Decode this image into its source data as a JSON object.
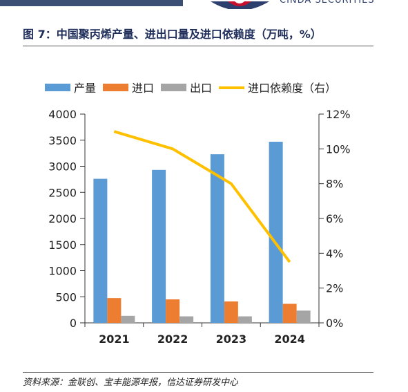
{
  "header": {
    "logo_text": "CINDA SECURITIES"
  },
  "figure": {
    "title": "图 7：中国聚丙烯产量、进出口量及进口依赖度（万吨，%）",
    "source": "资料来源：金联创、宝丰能源年报，信达证券研发中心"
  },
  "colors": {
    "production": "#5b9bd5",
    "import": "#ed7d31",
    "export": "#a5a5a5",
    "dependency": "#ffc000"
  },
  "chart_data": {
    "type": "bar",
    "categories": [
      "2021",
      "2022",
      "2023",
      "2024"
    ],
    "series": [
      {
        "name": "产量",
        "type": "bar",
        "axis": "left",
        "values": [
          2760,
          2930,
          3230,
          3470
        ]
      },
      {
        "name": "进口",
        "type": "bar",
        "axis": "left",
        "values": [
          475,
          450,
          410,
          365
        ]
      },
      {
        "name": "出口",
        "type": "bar",
        "axis": "left",
        "values": [
          135,
          125,
          125,
          235
        ]
      },
      {
        "name": "进口依赖度（右）",
        "type": "line",
        "axis": "right",
        "values": [
          11.0,
          10.0,
          8.0,
          3.5
        ]
      }
    ],
    "ylim": [
      0,
      4000
    ],
    "yticks": [
      "0",
      "500",
      "1000",
      "1500",
      "2000",
      "2500",
      "3000",
      "3500",
      "4000"
    ],
    "y2lim": [
      0,
      12
    ],
    "y2ticks": [
      "0%",
      "2%",
      "4%",
      "6%",
      "8%",
      "10%",
      "12%"
    ],
    "legend_position": "top",
    "grid": false
  }
}
